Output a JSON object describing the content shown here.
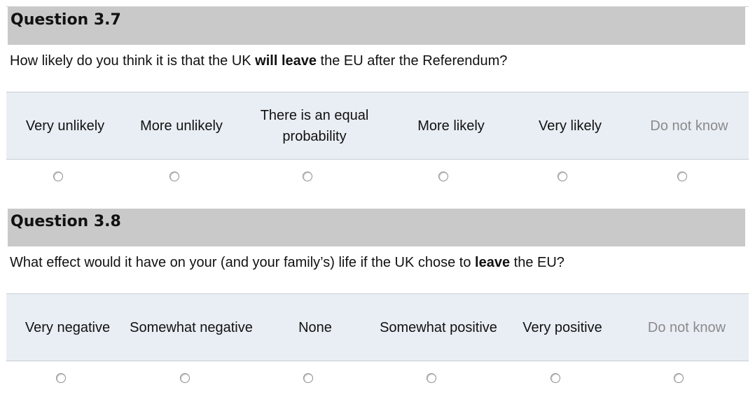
{
  "q37": {
    "title": "Question 3.7",
    "text_pre": "How likely do you think it is that the UK ",
    "text_bold": "will leave",
    "text_post": " the EU after the Referendum?",
    "options": [
      "Very unlikely",
      "More unlikely",
      "There is an equal probability",
      "More likely",
      "Very likely",
      "Do not know"
    ]
  },
  "q38": {
    "title": "Question 3.8",
    "text_pre": "What effect would it have on your (and your family’s) life if the UK chose to ",
    "text_bold": "leave",
    "text_post": " the EU?",
    "options": [
      "Very negative",
      "Somewhat negative",
      "None",
      "Somewhat positive",
      "Very positive",
      "Do not know"
    ]
  },
  "colors": {
    "header_bg": "#c9c9c9",
    "scale_bg": "#e9eef5",
    "muted_text": "#8a8a8a"
  }
}
